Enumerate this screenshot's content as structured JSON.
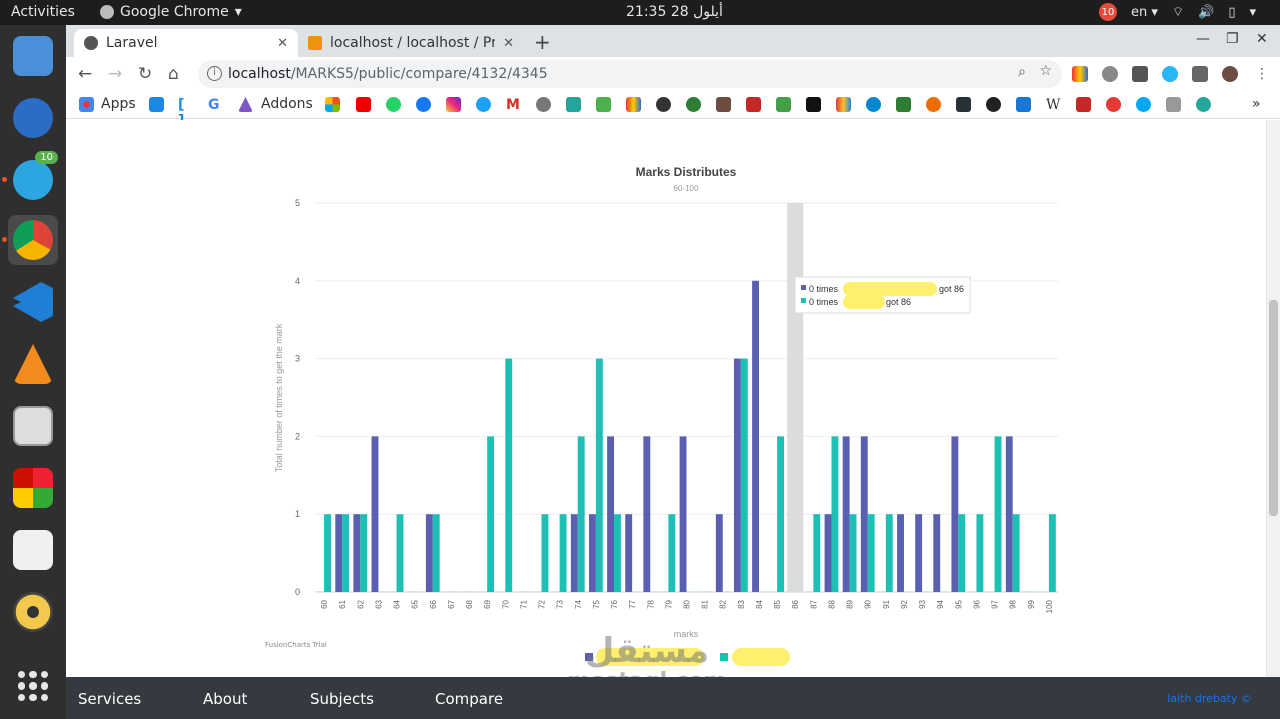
{
  "topbar": {
    "activities": "Activities",
    "app_name": "Google Chrome",
    "clock": "أيلول 28  21:35",
    "notif_count": "10",
    "lang": "en"
  },
  "dock": {
    "telegram_badge": "10"
  },
  "tabs": [
    {
      "title": "Laravel",
      "active": true
    },
    {
      "title": "localhost / localhost / Pro",
      "active": false
    }
  ],
  "omnibox": {
    "host": "localhost",
    "path": "/MARKS5/public/compare/4132/4345"
  },
  "bookmarks": {
    "apps": "Apps",
    "addons": "Addons"
  },
  "chart_data": {
    "type": "bar",
    "title": "Marks Distributes",
    "subtitle": "60-100",
    "xlabel": "marks",
    "ylabel": "Total number of times to get the mark",
    "ylim": [
      0,
      5
    ],
    "yticks": [
      "0",
      "1",
      "2",
      "3",
      "4",
      "5"
    ],
    "categories": [
      "60",
      "61",
      "62",
      "63",
      "64",
      "65",
      "66",
      "67",
      "68",
      "69",
      "70",
      "71",
      "72",
      "73",
      "74",
      "75",
      "76",
      "77",
      "78",
      "79",
      "80",
      "81",
      "82",
      "83",
      "84",
      "85",
      "86",
      "87",
      "88",
      "89",
      "90",
      "91",
      "92",
      "93",
      "94",
      "95",
      "96",
      "97",
      "98",
      "99",
      "100"
    ],
    "series": [
      {
        "color": "#5a5fb0",
        "values": [
          0,
          1,
          1,
          2,
          0,
          0,
          1,
          0,
          0,
          0,
          0,
          0,
          0,
          0,
          1,
          1,
          2,
          1,
          2,
          0,
          2,
          0,
          1,
          3,
          4,
          0,
          0,
          0,
          1,
          2,
          2,
          0,
          1,
          1,
          1,
          2,
          0,
          0,
          2,
          0,
          0
        ]
      },
      {
        "color": "#1ec0b6",
        "values": [
          1,
          1,
          1,
          0,
          1,
          0,
          1,
          0,
          0,
          2,
          3,
          0,
          1,
          1,
          2,
          3,
          1,
          0,
          0,
          1,
          0,
          0,
          0,
          3,
          0,
          2,
          0,
          1,
          2,
          1,
          1,
          1,
          0,
          0,
          0,
          1,
          1,
          2,
          1,
          0,
          1
        ]
      }
    ],
    "highlight_category": "86",
    "tooltip": {
      "line1_prefix": "0 times",
      "line1_suffix": "got 86",
      "line2_prefix": "0 times",
      "line2_suffix": "got 86"
    },
    "footer": "FusionCharts Trial"
  },
  "footer_nav": {
    "services": "Services",
    "about": "About",
    "subjects": "Subjects",
    "compare": "Compare",
    "credit": "laith drebaty ©"
  },
  "watermark": {
    "ar": "مستقل",
    "en": "mostaql.com"
  }
}
